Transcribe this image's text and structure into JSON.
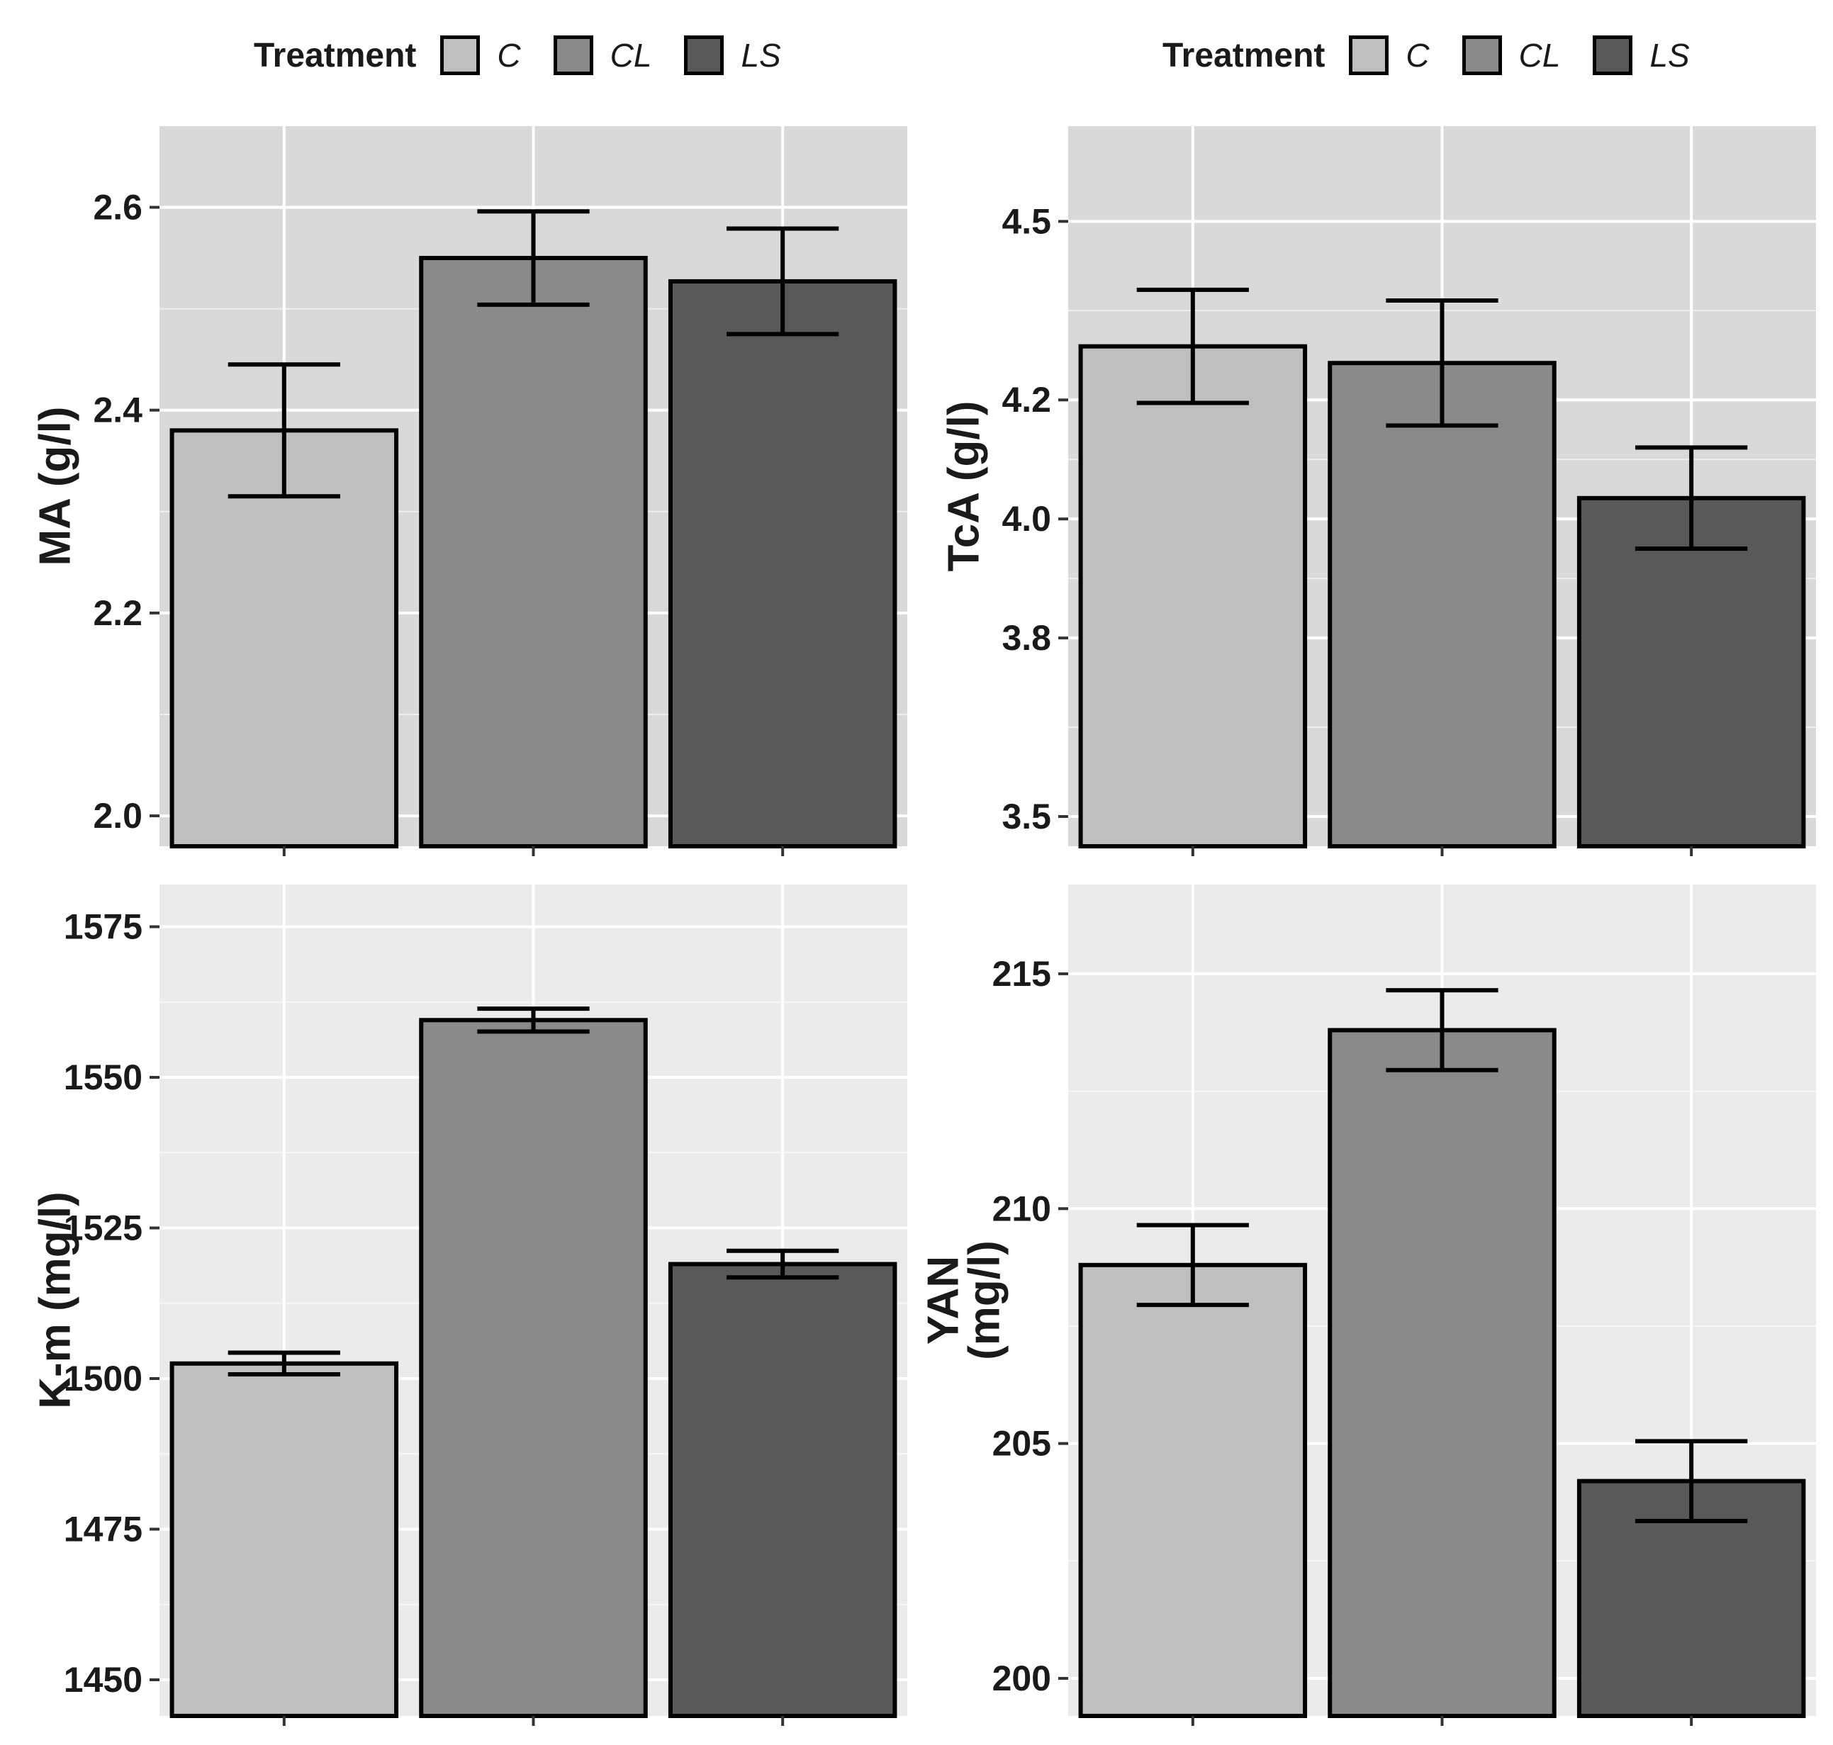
{
  "chart_data": [
    {
      "type": "bar",
      "title": "",
      "xlabel": "",
      "ylabel": [
        "MA (g/l)"
      ],
      "categories": [
        "C",
        "CL",
        "LS"
      ],
      "values": [
        2.38,
        2.55,
        2.527
      ],
      "error": [
        0.065,
        0.046,
        0.052
      ],
      "ylim": [
        1.97,
        2.68
      ],
      "yticks": [
        2.0,
        2.2,
        2.4,
        2.6
      ],
      "ytick_labels": [
        "2.0",
        "2.2",
        "2.4",
        "2.6"
      ],
      "legend": {
        "title": "Treatment",
        "entries": [
          "C",
          "CL",
          "LS"
        ],
        "position": "top"
      },
      "panel_bg": "#d9d9d9"
    },
    {
      "type": "bar",
      "title": "",
      "xlabel": "",
      "ylabel": [
        "TcA (g/l)"
      ],
      "categories": [
        "C",
        "CL",
        "LS"
      ],
      "values": [
        4.29,
        4.262,
        4.035
      ],
      "error": [
        0.095,
        0.105,
        0.085
      ],
      "ylim": [
        3.45,
        4.66
      ],
      "yticks": [
        3.5,
        3.8,
        4.0,
        4.2,
        4.5
      ],
      "ytick_labels": [
        "3.5",
        "3.8",
        "4.0",
        "4.2",
        "4.5"
      ],
      "legend": {
        "title": "Treatment",
        "entries": [
          "C",
          "CL",
          "LS"
        ],
        "position": "top"
      },
      "panel_bg": "#d9d9d9"
    },
    {
      "type": "bar",
      "title": "",
      "xlabel": "",
      "ylabel": [
        "K-m (mg/l)"
      ],
      "categories": [
        "C",
        "CL",
        "LS"
      ],
      "values": [
        1502.5,
        1559.5,
        1519
      ],
      "error": [
        1.8,
        1.9,
        2.2
      ],
      "ylim": [
        1444,
        1582
      ],
      "yticks": [
        1450,
        1475,
        1500,
        1525,
        1550,
        1575
      ],
      "ytick_labels": [
        "1450",
        "1475",
        "1500",
        "1525",
        "1550",
        "1575"
      ],
      "panel_bg": "#ebebeb"
    },
    {
      "type": "bar",
      "title": "",
      "xlabel": "",
      "ylabel": [
        "YAN",
        "(mg/l)"
      ],
      "categories": [
        "C",
        "CL",
        "LS"
      ],
      "values": [
        208.8,
        213.8,
        204.2
      ],
      "error": [
        0.85,
        0.85,
        0.85
      ],
      "ylim": [
        199.2,
        216.9
      ],
      "yticks": [
        200,
        205,
        210,
        215
      ],
      "ytick_labels": [
        "200",
        "205",
        "210",
        "215"
      ],
      "panel_bg": "#ebebeb"
    }
  ],
  "legend": {
    "title": "Treatment",
    "entries": [
      "C",
      "CL",
      "LS"
    ]
  },
  "colors": {
    "C": "#bfbfbf",
    "CL": "#8a8a8a",
    "LS": "#595959",
    "outline": "#000000",
    "grid": "#ffffff",
    "text": "#1a1a1a"
  }
}
